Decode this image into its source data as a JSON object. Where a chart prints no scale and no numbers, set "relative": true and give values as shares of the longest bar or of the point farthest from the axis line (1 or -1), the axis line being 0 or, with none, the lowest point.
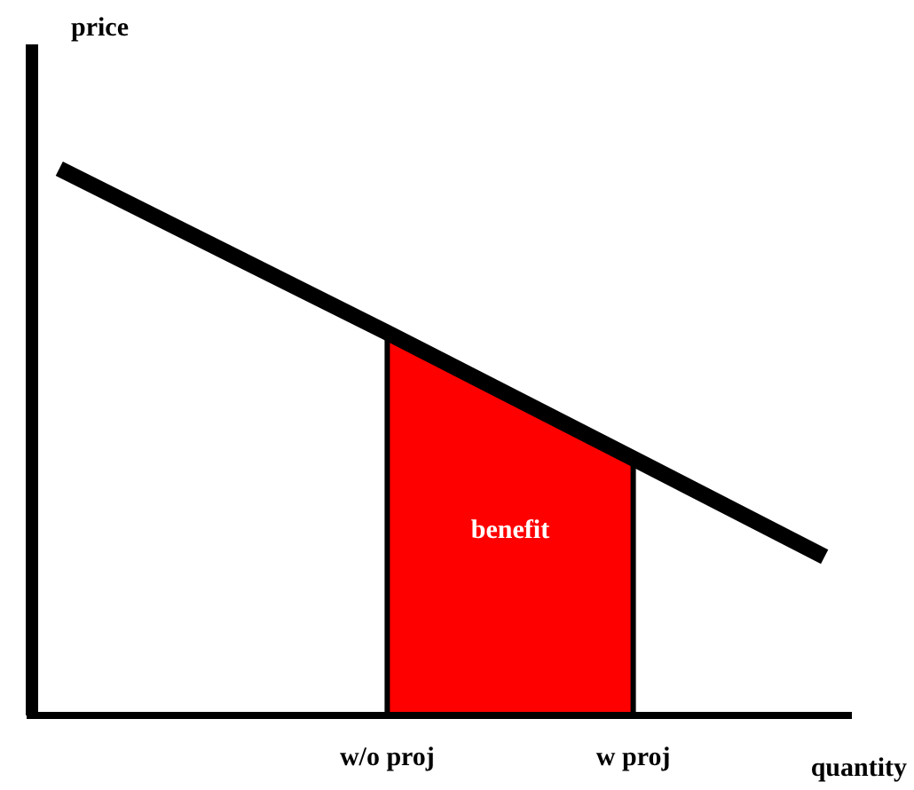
{
  "chart_data": {
    "type": "line",
    "xlabel": "quantity",
    "ylabel": "price",
    "relative": true,
    "categories": [
      null,
      null,
      null,
      null,
      null,
      null,
      null,
      null,
      null,
      null,
      null,
      null,
      null,
      "w/o proj",
      null,
      null,
      null,
      null,
      null,
      null,
      null,
      null,
      "w proj",
      null,
      null,
      null,
      null,
      null,
      null,
      null,
      null
    ],
    "series": [
      {
        "type": "area",
        "color": "#ff0000",
        "values": [
          null,
          null,
          null,
          null,
          null,
          null,
          null,
          null,
          null,
          null,
          null,
          null,
          null,
          0.7,
          null,
          null,
          null,
          null,
          null,
          null,
          null,
          null,
          0.47,
          null,
          null,
          null,
          null,
          null,
          null,
          null,
          null
        ]
      },
      {
        "color": "#000000",
        "values": [
          null,
          1.0,
          null,
          null,
          null,
          null,
          null,
          null,
          null,
          null,
          null,
          null,
          null,
          0.7,
          null,
          null,
          null,
          null,
          null,
          null,
          null,
          null,
          0.47,
          null,
          null,
          null,
          null,
          null,
          null,
          0.29,
          null
        ]
      }
    ],
    "annotations": [
      "benefit"
    ]
  }
}
